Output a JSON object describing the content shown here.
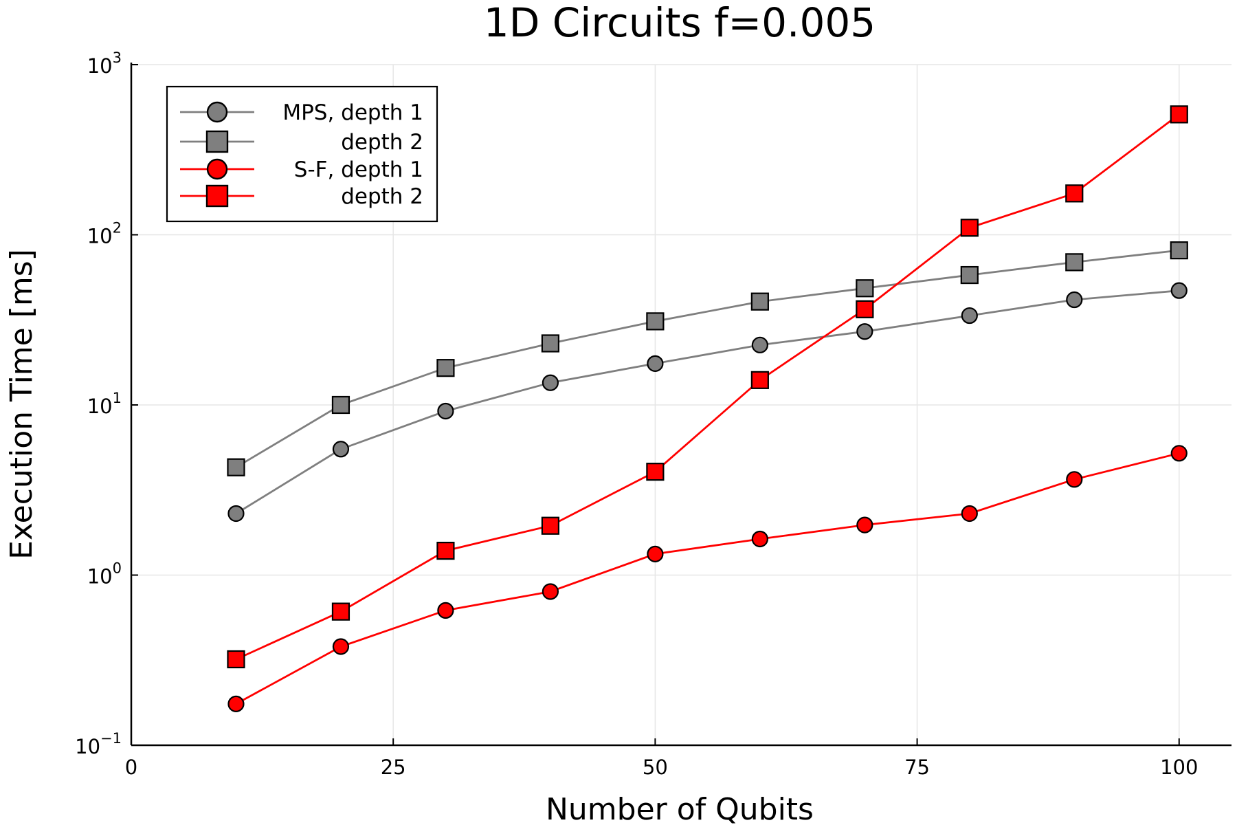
{
  "chart_data": {
    "type": "line",
    "title": "1D Circuits f=0.005",
    "xlabel": "Number of Qubits",
    "ylabel": "Execution Time [ms]",
    "xlim": [
      0,
      105
    ],
    "ylim": [
      0.1,
      1000
    ],
    "yscale": "log",
    "grid": true,
    "legend_position": "top-left",
    "x_ticks": [
      0,
      25,
      50,
      75,
      100
    ],
    "x_tick_labels": [
      "0",
      "25",
      "50",
      "75",
      "100"
    ],
    "y_ticks": [
      0.1,
      1,
      10,
      100,
      1000
    ],
    "y_tick_labels": [
      {
        "base": "10",
        "exp": "−1"
      },
      {
        "base": "10",
        "exp": "0"
      },
      {
        "base": "10",
        "exp": "1"
      },
      {
        "base": "10",
        "exp": "2"
      },
      {
        "base": "10",
        "exp": "3"
      }
    ],
    "x": [
      10,
      20,
      30,
      40,
      50,
      60,
      70,
      80,
      90,
      100
    ],
    "series": [
      {
        "name": "MPS, depth 1",
        "color": "#7f7f7f",
        "marker": "circle",
        "values": [
          2.3,
          5.5,
          9.2,
          13.5,
          17.5,
          22.5,
          27,
          33.5,
          41.5,
          47
        ]
      },
      {
        "name": "depth 2",
        "color": "#7f7f7f",
        "marker": "square",
        "values": [
          4.3,
          10,
          16.5,
          23,
          31,
          40.5,
          48.5,
          58,
          69,
          81
        ]
      },
      {
        "name": "S-F,  depth 1",
        "color": "#ff0000",
        "marker": "circle",
        "values": [
          0.175,
          0.38,
          0.62,
          0.8,
          1.33,
          1.63,
          1.97,
          2.3,
          3.65,
          5.2
        ]
      },
      {
        "name": "depth 2",
        "color": "#ff0000",
        "marker": "square",
        "values": [
          0.32,
          0.61,
          1.39,
          1.95,
          4.05,
          14,
          36.5,
          110,
          175,
          510
        ]
      }
    ]
  }
}
